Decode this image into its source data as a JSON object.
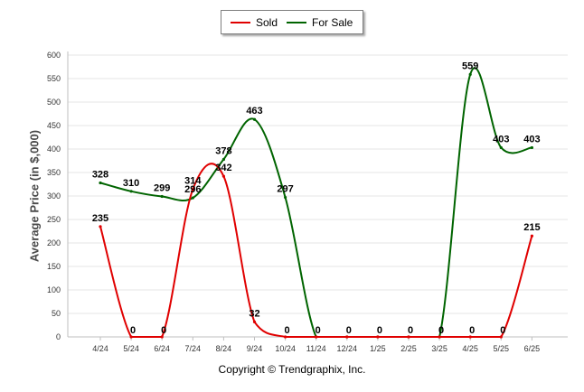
{
  "chart_data": {
    "type": "line",
    "title": "",
    "xlabel": "",
    "ylabel": "Average Price (in $,000)",
    "ylim": [
      0,
      600
    ],
    "yticks": [
      0,
      50,
      100,
      150,
      200,
      250,
      300,
      350,
      400,
      450,
      500,
      550,
      600
    ],
    "grid": true,
    "legend_position": "top",
    "categories": [
      "4/24",
      "5/24",
      "6/24",
      "7/24",
      "8/24",
      "9/24",
      "10/24",
      "11/24",
      "12/24",
      "1/25",
      "2/25",
      "3/25",
      "4/25",
      "5/25",
      "6/25"
    ],
    "series": [
      {
        "name": "Sold",
        "color": "#e00000",
        "values": [
          235,
          0,
          0,
          314,
          342,
          32,
          0,
          0,
          0,
          0,
          0,
          0,
          0,
          0,
          215
        ],
        "labels": [
          "235",
          "0",
          "0",
          "314",
          "342",
          "32",
          "0",
          "0",
          "0",
          "0",
          "0",
          "0",
          "0",
          "0",
          "215"
        ]
      },
      {
        "name": "For Sale",
        "color": "#006400",
        "values": [
          328,
          310,
          299,
          296,
          378,
          463,
          297,
          0,
          0,
          0,
          0,
          0,
          559,
          403,
          403
        ],
        "labels": [
          "328",
          "310",
          "299",
          "296",
          "378",
          "463",
          "297",
          "",
          "",
          "",
          "",
          "",
          "559",
          "403",
          "403"
        ]
      }
    ]
  },
  "footer": {
    "copyright": "Copyright © Trendgraphix, Inc."
  }
}
